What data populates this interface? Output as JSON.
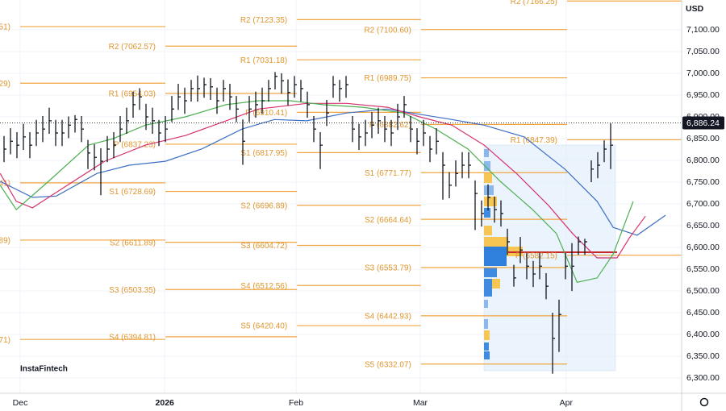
{
  "chart_data": {
    "type": "ohlc",
    "currency": "USD",
    "brand": "InstaFintech",
    "xlim": [
      -0.625,
      105
    ],
    "xticks": [
      {
        "value": 2.5,
        "label": "Dec"
      },
      {
        "value": 24.9,
        "label": "2026"
      },
      {
        "value": 45.25,
        "label": "Feb"
      },
      {
        "value": 64.5,
        "label": "Mar"
      },
      {
        "value": 87.1,
        "label": "Apr"
      }
    ],
    "ylim": [
      6265,
      7168.5
    ],
    "yticks": [
      {
        "value": 7100,
        "label": "7,100.00"
      },
      {
        "value": 7050,
        "label": "7,050.00"
      },
      {
        "value": 7000,
        "label": "7,000.00"
      },
      {
        "value": 6950,
        "label": "6,950.00"
      },
      {
        "value": 6900,
        "label": "6,900.00"
      },
      {
        "value": 6850,
        "label": "6,850.00"
      },
      {
        "value": 6800,
        "label": "6,800.00"
      },
      {
        "value": 6750,
        "label": "6,750.00"
      },
      {
        "value": 6700,
        "label": "6,700.00"
      },
      {
        "value": 6650,
        "label": "6,650.00"
      },
      {
        "value": 6600,
        "label": "6,600.00"
      },
      {
        "value": 6550,
        "label": "6,550.00"
      },
      {
        "value": 6500,
        "label": "6,500.00"
      },
      {
        "value": 6450,
        "label": "6,450.00"
      },
      {
        "value": 6400,
        "label": "6,400.00"
      },
      {
        "value": 6350,
        "label": "6,350.00"
      },
      {
        "value": 6300,
        "label": "6,300.00"
      }
    ],
    "last_price": {
      "value": 6886.24,
      "label": "6,886.24"
    },
    "bars": {
      "color": "#131722",
      "high": [
        6856,
        6874,
        6865,
        6884,
        6865,
        6893,
        6902,
        6921,
        6893,
        6893,
        6901,
        6904,
        6902,
        6847,
        6837,
        6828,
        6856,
        6865,
        6902,
        6921,
        6958,
        6966,
        6930,
        6921,
        6893,
        6902,
        6948,
        6976,
        6967,
        6985,
        6995,
        6990,
        6989,
        6967,
        6985,
        6976,
        6948,
        6894,
        6948,
        6958,
        6967,
        6985,
        7003,
        7000,
        6986,
        6994,
        6985,
        6958,
        6902,
        6865,
        6939,
        6994,
        6985,
        6994,
        6902,
        6884,
        6893,
        6911,
        6921,
        6902,
        6893,
        6930,
        6948,
        6902,
        6874,
        6893,
        6856,
        6874,
        6819,
        6773,
        6800,
        6819,
        6819,
        6754,
        6708,
        6745,
        6717,
        6708,
        6643,
        6560,
        6624,
        6587,
        6569,
        6587,
        6541,
        6450,
        6480,
        6587,
        6610,
        6625,
        6620,
        6800,
        6819,
        6846,
        6885
      ],
      "low": [
        6796,
        6814,
        6805,
        6824,
        6805,
        6833,
        6842,
        6861,
        6833,
        6833,
        6851,
        6864,
        6842,
        6780,
        6777,
        6720,
        6796,
        6805,
        6842,
        6861,
        6898,
        6916,
        6870,
        6861,
        6833,
        6842,
        6888,
        6916,
        6907,
        6935,
        6935,
        6944,
        6939,
        6907,
        6935,
        6916,
        6888,
        6790,
        6888,
        6898,
        6907,
        6935,
        6963,
        6953,
        6926,
        6944,
        6935,
        6898,
        6842,
        6780,
        6879,
        6944,
        6935,
        6944,
        6842,
        6824,
        6833,
        6851,
        6861,
        6842,
        6833,
        6870,
        6898,
        6842,
        6814,
        6833,
        6796,
        6814,
        6710,
        6713,
        6740,
        6759,
        6759,
        6640,
        6648,
        6685,
        6657,
        6648,
        6583,
        6510,
        6564,
        6527,
        6509,
        6527,
        6481,
        6310,
        6360,
        6527,
        6500,
        6583,
        6583,
        6750,
        6759,
        6796,
        6780
      ],
      "close": [
        6826,
        6844,
        6835,
        6854,
        6835,
        6863,
        6872,
        6891,
        6863,
        6863,
        6881,
        6894,
        6872,
        6817,
        6807,
        6798,
        6826,
        6835,
        6872,
        6891,
        6928,
        6946,
        6900,
        6891,
        6863,
        6872,
        6918,
        6946,
        6937,
        6965,
        6965,
        6974,
        6969,
        6937,
        6965,
        6946,
        6918,
        6844,
        6918,
        6928,
        6937,
        6965,
        6993,
        6983,
        6956,
        6974,
        6965,
        6928,
        6872,
        6835,
        6909,
        6974,
        6965,
        6974,
        6872,
        6854,
        6863,
        6881,
        6891,
        6872,
        6863,
        6900,
        6928,
        6872,
        6844,
        6863,
        6826,
        6844,
        6789,
        6743,
        6770,
        6789,
        6789,
        6724,
        6678,
        6715,
        6687,
        6678,
        6613,
        6530,
        6594,
        6557,
        6539,
        6557,
        6511,
        6391,
        6446,
        6557,
        6557,
        6613,
        6613,
        6780,
        6789,
        6826,
        6835
      ]
    },
    "series": [
      {
        "color": "#3d6fc4",
        "x": [
          -0.6,
          4.4,
          8.1,
          14.4,
          19.4,
          25,
          30.6,
          36.9,
          41.9,
          46.9,
          53.1,
          59.4,
          64.4,
          69.4,
          74.4,
          80.6,
          86.9,
          91.9,
          94.4,
          98.1,
          102.5
        ],
        "values": [
          6752,
          6715,
          6718,
          6770,
          6789,
          6798,
          6826,
          6872,
          6894,
          6891,
          6909,
          6918,
          6906,
          6894,
          6881,
          6854,
          6780,
          6706,
          6646,
          6628,
          6674
        ]
      },
      {
        "color": "#d6336c",
        "x": [
          -0.6,
          1.9,
          4.4,
          9.4,
          15.6,
          21.9,
          28.1,
          34.4,
          39.4,
          46.9,
          53.1,
          59.4,
          64.4,
          69.4,
          74.4,
          79.4,
          84.4,
          88.1,
          91.9,
          95,
          96.9,
          99.4
        ],
        "values": [
          6770,
          6706,
          6691,
          6739,
          6798,
          6835,
          6857,
          6891,
          6918,
          6931,
          6931,
          6922,
          6900,
          6881,
          6835,
          6770,
          6696,
          6632,
          6576,
          6576,
          6622,
          6672
        ]
      },
      {
        "color": "#4caf50",
        "x": [
          -0.6,
          1.9,
          6.9,
          13.1,
          16.9,
          21.9,
          28.1,
          34.4,
          39.4,
          44.4,
          49.4,
          55.6,
          61.9,
          66.9,
          71.9,
          76.9,
          81.9,
          85.6,
          88.8,
          91.9,
          94.4,
          97.5
        ],
        "values": [
          6743,
          6687,
          6752,
          6835,
          6850,
          6881,
          6900,
          6928,
          6937,
          6937,
          6928,
          6922,
          6909,
          6872,
          6826,
          6752,
          6687,
          6632,
          6520,
          6530,
          6585,
          6706
        ]
      }
    ],
    "pivots": [
      {
        "start": 2.5,
        "end": 25,
        "levels": [
          {
            "label": "51)",
            "value": 7107.51
          },
          {
            "label": "29)",
            "value": 6977.29
          },
          {
            "label": "41)",
            "value": 6748.41
          },
          {
            "label": "89)",
            "value": 6616.89
          },
          {
            "label": "71)",
            "value": 6388.71
          }
        ]
      },
      {
        "start": 25,
        "end": 45.4,
        "levels": [
          {
            "label": "R2 (7062.57)",
            "value": 7062.57
          },
          {
            "label": "R1 (6954.03)",
            "value": 6954.03
          },
          {
            "label": "P (6837.23)",
            "value": 6837.23
          },
          {
            "label": "S1 (6728.69)",
            "value": 6728.69
          },
          {
            "label": "S2 (6611.89)",
            "value": 6611.89
          },
          {
            "label": "S3 (6503.35)",
            "value": 6503.35
          },
          {
            "label": "S4 (6394.81)",
            "value": 6394.81
          }
        ]
      },
      {
        "start": 45.4,
        "end": 64.6,
        "levels": [
          {
            "label": "R2 (7123.35)",
            "value": 7123.35
          },
          {
            "label": "R1 (7031.18)",
            "value": 7031.18
          },
          {
            "label": "P (6910.41)",
            "value": 6910.41
          },
          {
            "label": "S1 (6817.95)",
            "value": 6817.95
          },
          {
            "label": "S2 (6696.89)",
            "value": 6696.89
          },
          {
            "label": "S3 (6604.72)",
            "value": 6604.72
          },
          {
            "label": "S4 (6512.56)",
            "value": 6512.56
          },
          {
            "label": "S5 (6420.40)",
            "value": 6420.4
          }
        ]
      },
      {
        "start": 64.6,
        "end": 87.25,
        "levels": [
          {
            "label": "R2 (7100.60)",
            "value": 7100.6
          },
          {
            "label": "R1 (6989.75)",
            "value": 6989.75
          },
          {
            "label": "P (6882.62)",
            "value": 6882.62
          },
          {
            "label": "S1 (6771.77)",
            "value": 6771.77
          },
          {
            "label": "S2 (6664.64)",
            "value": 6664.64
          },
          {
            "label": "S3 (6553.79)",
            "value": 6553.79
          },
          {
            "label": "S4 (6442.93)",
            "value": 6442.93
          },
          {
            "label": "S5 (6332.07)",
            "value": 6332.07
          }
        ]
      },
      {
        "start": 87.25,
        "end": 105,
        "levels": [
          {
            "label": "R2 (7166.25)",
            "value": 7166.25
          },
          {
            "label": "R1 (6847.39)",
            "value": 6847.39
          },
          {
            "label": "P (6582.15)",
            "value": 6582.15
          }
        ]
      }
    ]
  }
}
